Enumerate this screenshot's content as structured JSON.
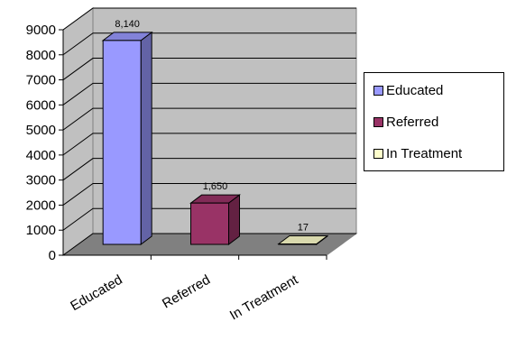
{
  "chart_data": {
    "type": "bar",
    "categories": [
      "Educated",
      "Referred",
      "In Treatment"
    ],
    "values": [
      8140,
      1650,
      17
    ],
    "data_labels": [
      "8,140",
      "1,650",
      "17"
    ],
    "ylim": [
      0,
      9000
    ],
    "yticks": [
      0,
      1000,
      2000,
      3000,
      4000,
      5000,
      6000,
      7000,
      8000,
      9000
    ],
    "title": "",
    "xlabel": "",
    "ylabel": "",
    "grid": true,
    "legend_position": "right",
    "series": [
      {
        "name": "Educated",
        "color": "#9999ff"
      },
      {
        "name": "Referred",
        "color": "#993366"
      },
      {
        "name": "In Treatment",
        "color": "#ffffcc"
      }
    ]
  },
  "legend": {
    "items": [
      {
        "label": "Educated",
        "color": "#9999ff"
      },
      {
        "label": "Referred",
        "color": "#993366"
      },
      {
        "label": "In Treatment",
        "color": "#ffffcc"
      }
    ]
  }
}
